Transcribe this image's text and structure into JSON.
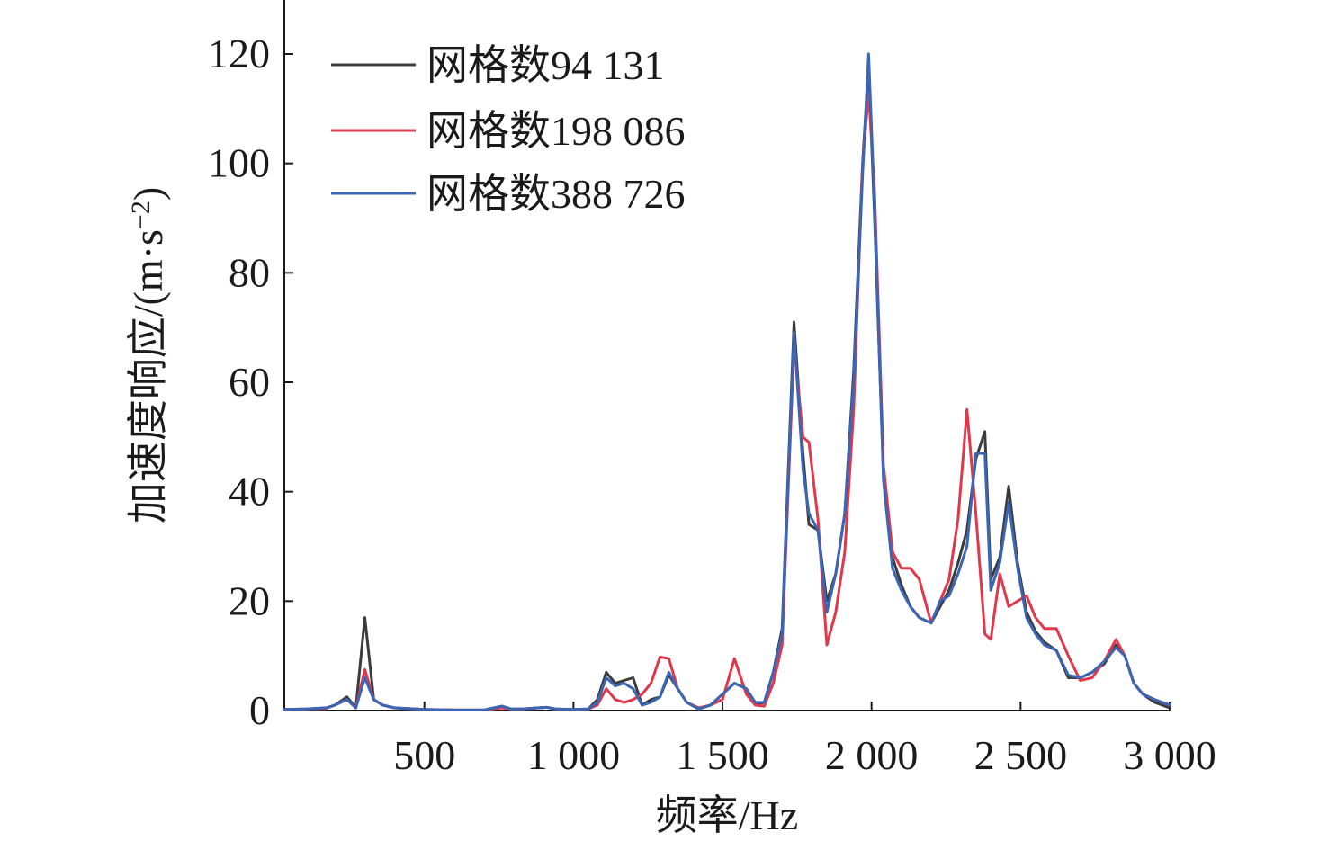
{
  "chart_data": {
    "type": "line",
    "title": "",
    "xlabel": "频率/Hz",
    "ylabel_main": "加速度响应/(m·s",
    "ylabel_sup": "−2",
    "ylabel_end": ")",
    "xlim": [
      30,
      3000
    ],
    "ylim": [
      0,
      120
    ],
    "xticks": [
      {
        "value": 500,
        "label": "500"
      },
      {
        "value": 1000,
        "label": "1 000"
      },
      {
        "value": 1500,
        "label": "1 500"
      },
      {
        "value": 2000,
        "label": "2 000"
      },
      {
        "value": 2500,
        "label": "2 500"
      },
      {
        "value": 3000,
        "label": "3 000"
      }
    ],
    "yticks": [
      {
        "value": 0,
        "label": "0"
      },
      {
        "value": 20,
        "label": "20"
      },
      {
        "value": 40,
        "label": "40"
      },
      {
        "value": 60,
        "label": "60"
      },
      {
        "value": 80,
        "label": "80"
      },
      {
        "value": 100,
        "label": "100"
      },
      {
        "value": 120,
        "label": "120"
      }
    ],
    "grid": false,
    "legend_position": "top-left",
    "series": [
      {
        "name": "网格数94 131",
        "color": "#3c3c3c",
        "x": [
          30,
          100,
          170,
          200,
          240,
          270,
          300,
          330,
          360,
          400,
          500,
          600,
          700,
          760,
          790,
          830,
          880,
          910,
          940,
          1000,
          1050,
          1080,
          1110,
          1140,
          1170,
          1200,
          1230,
          1260,
          1290,
          1320,
          1350,
          1380,
          1420,
          1460,
          1500,
          1540,
          1580,
          1610,
          1640,
          1670,
          1700,
          1740,
          1770,
          1790,
          1820,
          1850,
          1880,
          1910,
          1940,
          1970,
          1990,
          2010,
          2040,
          2070,
          2100,
          2130,
          2160,
          2200,
          2230,
          2260,
          2290,
          2320,
          2350,
          2380,
          2400,
          2430,
          2460,
          2490,
          2520,
          2550,
          2580,
          2620,
          2660,
          2700,
          2740,
          2780,
          2820,
          2850,
          2880,
          2910,
          2950,
          3000
        ],
        "y": [
          0.2,
          0.3,
          0.5,
          1,
          2.5,
          0.5,
          17,
          2,
          1,
          0.5,
          0.2,
          0.1,
          0.1,
          0.8,
          0.3,
          0.3,
          0.5,
          0.6,
          0.3,
          0.2,
          0.3,
          2,
          7,
          5,
          5.5,
          6,
          1,
          2,
          2.5,
          6.5,
          4,
          1.5,
          0.3,
          1,
          3,
          5,
          4,
          1,
          1.5,
          7,
          15,
          71,
          47,
          34,
          33,
          20,
          25,
          36,
          62,
          100,
          118,
          90,
          43,
          28,
          23,
          19,
          17,
          16,
          19,
          22,
          27,
          33,
          46,
          51,
          24,
          28,
          41,
          27,
          18,
          14.5,
          12.5,
          11,
          6,
          6,
          7,
          8.5,
          12,
          10,
          5,
          3,
          1.5,
          0.5
        ]
      },
      {
        "name": "网格数198 086",
        "color": "#e0384a",
        "x": [
          30,
          100,
          170,
          200,
          240,
          270,
          300,
          330,
          360,
          400,
          500,
          600,
          700,
          760,
          790,
          830,
          880,
          910,
          940,
          1000,
          1050,
          1080,
          1110,
          1140,
          1170,
          1200,
          1230,
          1260,
          1290,
          1320,
          1350,
          1380,
          1420,
          1460,
          1500,
          1540,
          1580,
          1610,
          1640,
          1670,
          1700,
          1740,
          1770,
          1790,
          1820,
          1850,
          1880,
          1910,
          1940,
          1970,
          1990,
          2010,
          2040,
          2070,
          2100,
          2130,
          2160,
          2200,
          2230,
          2260,
          2290,
          2320,
          2350,
          2380,
          2400,
          2430,
          2460,
          2490,
          2520,
          2550,
          2580,
          2620,
          2660,
          2700,
          2740,
          2780,
          2820,
          2850,
          2880,
          2910,
          2950,
          3000
        ],
        "y": [
          0.2,
          0.3,
          0.4,
          1,
          2,
          0.5,
          7.5,
          2,
          1,
          0.5,
          0.2,
          0.1,
          0.1,
          0.5,
          0.3,
          0.3,
          0.5,
          0.6,
          0.3,
          0.2,
          0.3,
          1,
          4,
          2,
          1.5,
          2,
          3,
          5,
          9.8,
          9.5,
          4,
          1.5,
          0.5,
          1,
          2,
          9.5,
          3,
          1,
          0.8,
          5,
          12,
          67,
          50,
          49,
          35,
          12,
          18,
          29,
          55,
          100,
          113,
          95,
          45,
          29,
          26,
          26,
          24,
          16,
          20,
          24,
          35,
          55,
          36,
          14,
          13,
          25,
          19,
          20,
          21,
          17,
          15,
          15,
          10,
          5.5,
          6,
          9,
          13,
          10,
          5,
          3,
          2,
          1
        ]
      },
      {
        "name": "网格数388 726",
        "color": "#3a66b5",
        "x": [
          30,
          100,
          170,
          200,
          240,
          270,
          300,
          330,
          360,
          400,
          500,
          600,
          700,
          760,
          790,
          830,
          880,
          910,
          940,
          1000,
          1050,
          1080,
          1110,
          1140,
          1170,
          1200,
          1230,
          1260,
          1290,
          1320,
          1350,
          1380,
          1420,
          1460,
          1500,
          1540,
          1580,
          1610,
          1640,
          1670,
          1700,
          1740,
          1770,
          1790,
          1820,
          1850,
          1880,
          1910,
          1940,
          1970,
          1990,
          2010,
          2040,
          2070,
          2100,
          2130,
          2160,
          2200,
          2230,
          2260,
          2290,
          2320,
          2350,
          2380,
          2400,
          2430,
          2460,
          2490,
          2520,
          2550,
          2580,
          2620,
          2660,
          2700,
          2740,
          2780,
          2820,
          2850,
          2880,
          2910,
          2950,
          3000
        ],
        "y": [
          0.2,
          0.3,
          0.5,
          1,
          2,
          0.5,
          6,
          2,
          1,
          0.5,
          0.2,
          0.1,
          0.1,
          0.8,
          0.3,
          0.3,
          0.5,
          0.6,
          0.3,
          0.2,
          0.3,
          1.5,
          6,
          4.5,
          5,
          4,
          1,
          1.5,
          2.5,
          7,
          4,
          1.5,
          0.3,
          1,
          3,
          5,
          4,
          1.5,
          1.5,
          7,
          14,
          69,
          44,
          36,
          33,
          18,
          25,
          36,
          60,
          98,
          120,
          92,
          42,
          26,
          22,
          19,
          17,
          16,
          20,
          21,
          25,
          30,
          47,
          47,
          22,
          27,
          38,
          26,
          17,
          14,
          12,
          11,
          6.5,
          6,
          7,
          9,
          11.5,
          10,
          5,
          3,
          2,
          1
        ]
      }
    ]
  }
}
